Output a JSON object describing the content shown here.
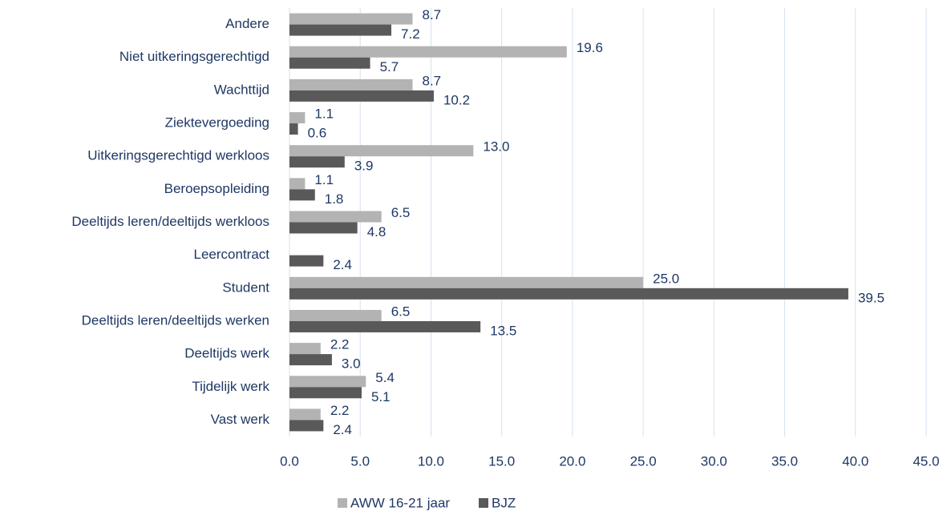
{
  "chart_data": {
    "type": "bar",
    "orientation": "horizontal",
    "categories": [
      "Andere",
      "Niet uitkeringsgerechtigd",
      "Wachttijd",
      "Ziektevergoeding",
      "Uitkeringsgerechtigd werkloos",
      "Beroepsopleiding",
      "Deeltijds leren/deeltijds werkloos",
      "Leercontract",
      "Student",
      "Deeltijds leren/deeltijds werken",
      "Deeltijds werk",
      "Tijdelijk werk",
      "Vast werk"
    ],
    "series": [
      {
        "name": "AWW 16-21 jaar",
        "color": "#b3b3b3",
        "values": [
          8.7,
          19.6,
          8.7,
          1.1,
          13.0,
          1.1,
          6.5,
          null,
          25.0,
          6.5,
          2.2,
          5.4,
          2.2
        ],
        "value_labels": [
          "8.7",
          "19.6",
          "8.7",
          "1.1",
          "13.0",
          "1.1",
          "6.5",
          null,
          "25.0",
          "6.5",
          "2.2",
          "5.4",
          "2.2"
        ]
      },
      {
        "name": "BJZ",
        "color": "#595959",
        "values": [
          7.2,
          5.7,
          10.2,
          0.6,
          3.9,
          1.8,
          4.8,
          2.4,
          39.5,
          13.5,
          3.0,
          5.1,
          2.4
        ],
        "value_labels": [
          "7.2",
          "5.7",
          "10.2",
          "0.6",
          "3.9",
          "1.8",
          "4.8",
          "2.4",
          "39.5",
          "13.5",
          "3.0",
          "5.1",
          "2.4"
        ]
      }
    ],
    "xlim": [
      0,
      45
    ],
    "xticks": [
      {
        "value": 0,
        "label": "0.0"
      },
      {
        "value": 5,
        "label": "5.0"
      },
      {
        "value": 10,
        "label": "10.0"
      },
      {
        "value": 15,
        "label": "15.0"
      },
      {
        "value": 20,
        "label": "20.0"
      },
      {
        "value": 25,
        "label": "25.0"
      },
      {
        "value": 30,
        "label": "30.0"
      },
      {
        "value": 35,
        "label": "35.0"
      },
      {
        "value": 40,
        "label": "40.0"
      },
      {
        "value": 45,
        "label": "45.0"
      }
    ],
    "grid": true,
    "legend": "bottom"
  }
}
